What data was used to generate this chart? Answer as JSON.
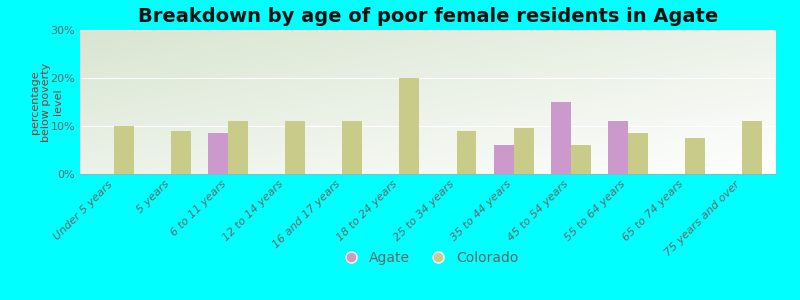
{
  "title": "Breakdown by age of poor female residents in Agate",
  "ylabel": "percentage\nbelow poverty\nlevel",
  "background_color": "#00ffff",
  "categories": [
    "Under 5 years",
    "5 years",
    "6 to 11 years",
    "12 to 14 years",
    "16 and 17 years",
    "18 to 24 years",
    "25 to 34 years",
    "35 to 44 years",
    "45 to 54 years",
    "55 to 64 years",
    "65 to 74 years",
    "75 years and over"
  ],
  "agate_values": [
    null,
    null,
    8.5,
    null,
    null,
    null,
    null,
    6.0,
    15.0,
    11.0,
    null,
    null
  ],
  "colorado_values": [
    10.0,
    9.0,
    11.0,
    11.0,
    11.0,
    20.0,
    9.0,
    9.5,
    6.0,
    8.5,
    7.5,
    11.0
  ],
  "agate_color": "#cc99cc",
  "colorado_color": "#c8cc88",
  "ylim": [
    0,
    30
  ],
  "yticks": [
    0,
    10,
    20,
    30
  ],
  "ytick_labels": [
    "0%",
    "10%",
    "20%",
    "30%"
  ],
  "bar_width": 0.35,
  "title_fontsize": 14,
  "axis_label_fontsize": 8,
  "tick_fontsize": 8,
  "legend_fontsize": 10,
  "text_color": "#666666"
}
